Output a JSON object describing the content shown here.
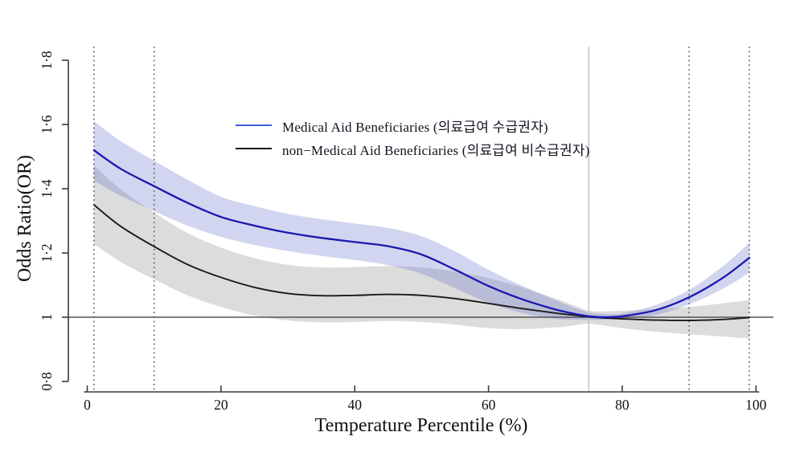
{
  "colors": {
    "background": "#ffffff",
    "axis": "#3a3a3a",
    "tick_text": "#111111",
    "reference_line": "#555555",
    "dotted_vline": "#4d4d4d",
    "solid_vline_75": "#c6c6c6",
    "series_blue_line": "#1b18b0",
    "series_blue_legend": "#3a62d8",
    "series_blue_band": "rgba(106,116,201,0.30)",
    "series_black_line": "#1a1a1a",
    "series_black_band": "rgba(128,128,128,0.28)"
  },
  "chart_data": {
    "type": "line",
    "title": "",
    "xlabel": "Temperature Percentile (%)",
    "ylabel": "Odds Ratio(OR)",
    "xlim": [
      0,
      100
    ],
    "ylim": [
      0.8,
      1.8
    ],
    "grid": false,
    "legend_position": "upper-left-inside",
    "x_ticks": [
      0,
      20,
      40,
      60,
      80,
      100
    ],
    "x_tick_labels": [
      "0",
      "20",
      "40",
      "60",
      "80",
      "100"
    ],
    "y_ticks": [
      0.8,
      1.0,
      1.2,
      1.4,
      1.6,
      1.8
    ],
    "y_tick_labels": [
      "0·8",
      "1",
      "1·2",
      "1·4",
      "1·6",
      "1·8"
    ],
    "reference_line_y": 1,
    "vertical_dotted_lines_x": [
      1,
      10,
      90,
      99
    ],
    "vertical_solid_line_x": 75,
    "x": [
      1,
      5,
      10,
      15,
      20,
      25,
      30,
      35,
      40,
      45,
      50,
      55,
      60,
      65,
      70,
      73,
      75,
      77,
      80,
      85,
      90,
      95,
      99
    ],
    "series": [
      {
        "name": "Medical Aid Beneficiaries (의료급여 수급권자)",
        "values": [
          1.52,
          1.462,
          1.408,
          1.356,
          1.312,
          1.285,
          1.263,
          1.247,
          1.234,
          1.221,
          1.195,
          1.148,
          1.097,
          1.056,
          1.024,
          1.01,
          1.003,
          1.0,
          1.003,
          1.022,
          1.062,
          1.122,
          1.185
        ],
        "ci_lower": [
          1.425,
          1.378,
          1.33,
          1.285,
          1.25,
          1.225,
          1.206,
          1.191,
          1.178,
          1.162,
          1.135,
          1.09,
          1.045,
          1.013,
          0.995,
          0.992,
          0.992,
          0.992,
          0.995,
          1.007,
          1.04,
          1.088,
          1.138
        ],
        "ci_upper": [
          1.61,
          1.548,
          1.487,
          1.428,
          1.375,
          1.346,
          1.322,
          1.305,
          1.292,
          1.278,
          1.252,
          1.205,
          1.148,
          1.098,
          1.053,
          1.028,
          1.015,
          1.01,
          1.012,
          1.038,
          1.085,
          1.158,
          1.232
        ]
      },
      {
        "name": "non−Medical Aid Beneficiaries (의료급여 비수급권자)",
        "values": [
          1.35,
          1.283,
          1.22,
          1.164,
          1.124,
          1.093,
          1.074,
          1.067,
          1.068,
          1.071,
          1.068,
          1.058,
          1.043,
          1.027,
          1.013,
          1.006,
          1.001,
          0.998,
          0.995,
          0.991,
          0.99,
          0.993,
          0.999
        ],
        "ci_lower": [
          1.228,
          1.172,
          1.118,
          1.068,
          1.032,
          1.005,
          0.99,
          0.984,
          0.985,
          0.988,
          0.985,
          0.977,
          0.966,
          0.963,
          0.968,
          0.975,
          0.98,
          0.975,
          0.966,
          0.955,
          0.947,
          0.94,
          0.934
        ],
        "ci_upper": [
          1.472,
          1.398,
          1.326,
          1.262,
          1.217,
          1.184,
          1.163,
          1.155,
          1.156,
          1.159,
          1.155,
          1.142,
          1.122,
          1.093,
          1.058,
          1.035,
          1.02,
          1.018,
          1.02,
          1.026,
          1.032,
          1.043,
          1.053
        ]
      }
    ]
  }
}
